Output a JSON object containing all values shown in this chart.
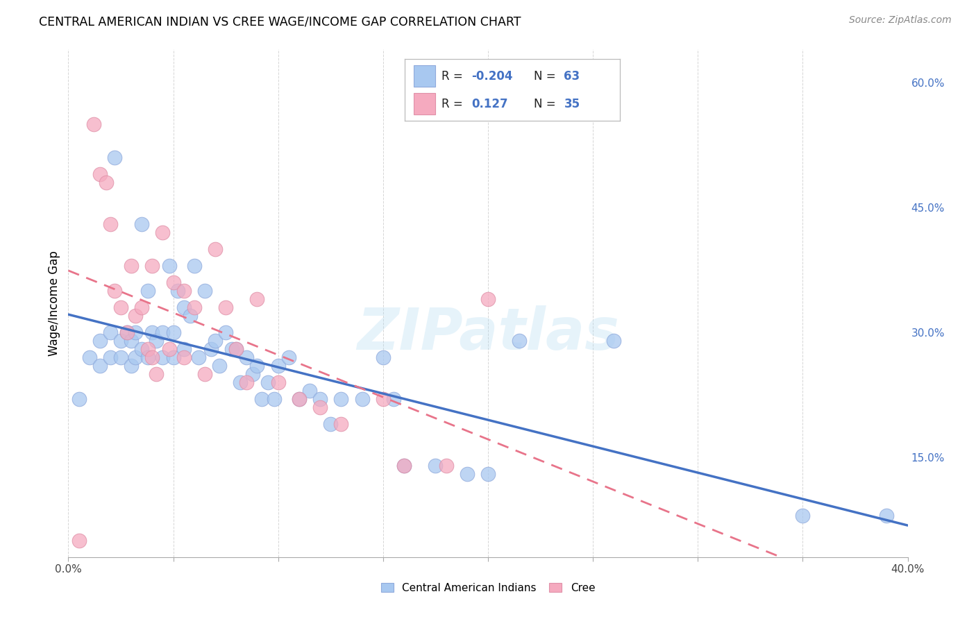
{
  "title": "CENTRAL AMERICAN INDIAN VS CREE WAGE/INCOME GAP CORRELATION CHART",
  "source": "Source: ZipAtlas.com",
  "ylabel": "Wage/Income Gap",
  "x_min": 0.0,
  "x_max": 0.4,
  "y_min": 0.03,
  "y_max": 0.64,
  "x_ticks": [
    0.0,
    0.05,
    0.1,
    0.15,
    0.2,
    0.25,
    0.3,
    0.35,
    0.4
  ],
  "y_ticks_right": [
    0.15,
    0.3,
    0.45,
    0.6
  ],
  "y_tick_labels_right": [
    "15.0%",
    "30.0%",
    "45.0%",
    "60.0%"
  ],
  "blue_color": "#A8C8F0",
  "blue_edge_color": "#90AADC",
  "pink_color": "#F5AABF",
  "pink_edge_color": "#E090A8",
  "blue_line_color": "#4472C4",
  "pink_line_color": "#E8748A",
  "watermark": "ZIPatlas",
  "blue_x": [
    0.005,
    0.01,
    0.015,
    0.015,
    0.02,
    0.02,
    0.022,
    0.025,
    0.025,
    0.028,
    0.03,
    0.03,
    0.032,
    0.032,
    0.035,
    0.035,
    0.038,
    0.038,
    0.04,
    0.042,
    0.045,
    0.045,
    0.048,
    0.05,
    0.05,
    0.052,
    0.055,
    0.055,
    0.058,
    0.06,
    0.062,
    0.065,
    0.068,
    0.07,
    0.072,
    0.075,
    0.078,
    0.08,
    0.082,
    0.085,
    0.088,
    0.09,
    0.092,
    0.095,
    0.098,
    0.1,
    0.105,
    0.11,
    0.115,
    0.12,
    0.125,
    0.13,
    0.14,
    0.15,
    0.155,
    0.16,
    0.175,
    0.19,
    0.2,
    0.215,
    0.26,
    0.35,
    0.39
  ],
  "blue_y": [
    0.22,
    0.27,
    0.29,
    0.26,
    0.3,
    0.27,
    0.51,
    0.29,
    0.27,
    0.3,
    0.29,
    0.26,
    0.3,
    0.27,
    0.43,
    0.28,
    0.35,
    0.27,
    0.3,
    0.29,
    0.3,
    0.27,
    0.38,
    0.3,
    0.27,
    0.35,
    0.33,
    0.28,
    0.32,
    0.38,
    0.27,
    0.35,
    0.28,
    0.29,
    0.26,
    0.3,
    0.28,
    0.28,
    0.24,
    0.27,
    0.25,
    0.26,
    0.22,
    0.24,
    0.22,
    0.26,
    0.27,
    0.22,
    0.23,
    0.22,
    0.19,
    0.22,
    0.22,
    0.27,
    0.22,
    0.14,
    0.14,
    0.13,
    0.13,
    0.29,
    0.29,
    0.08,
    0.08
  ],
  "pink_x": [
    0.005,
    0.012,
    0.015,
    0.018,
    0.02,
    0.022,
    0.025,
    0.028,
    0.03,
    0.032,
    0.035,
    0.038,
    0.04,
    0.042,
    0.045,
    0.048,
    0.05,
    0.055,
    0.06,
    0.065,
    0.07,
    0.075,
    0.08,
    0.085,
    0.09,
    0.1,
    0.11,
    0.12,
    0.13,
    0.15,
    0.16,
    0.18,
    0.2,
    0.04,
    0.055
  ],
  "pink_y": [
    0.05,
    0.55,
    0.49,
    0.48,
    0.43,
    0.35,
    0.33,
    0.3,
    0.38,
    0.32,
    0.33,
    0.28,
    0.27,
    0.25,
    0.42,
    0.28,
    0.36,
    0.27,
    0.33,
    0.25,
    0.4,
    0.33,
    0.28,
    0.24,
    0.34,
    0.24,
    0.22,
    0.21,
    0.19,
    0.22,
    0.14,
    0.14,
    0.34,
    0.38,
    0.35
  ]
}
